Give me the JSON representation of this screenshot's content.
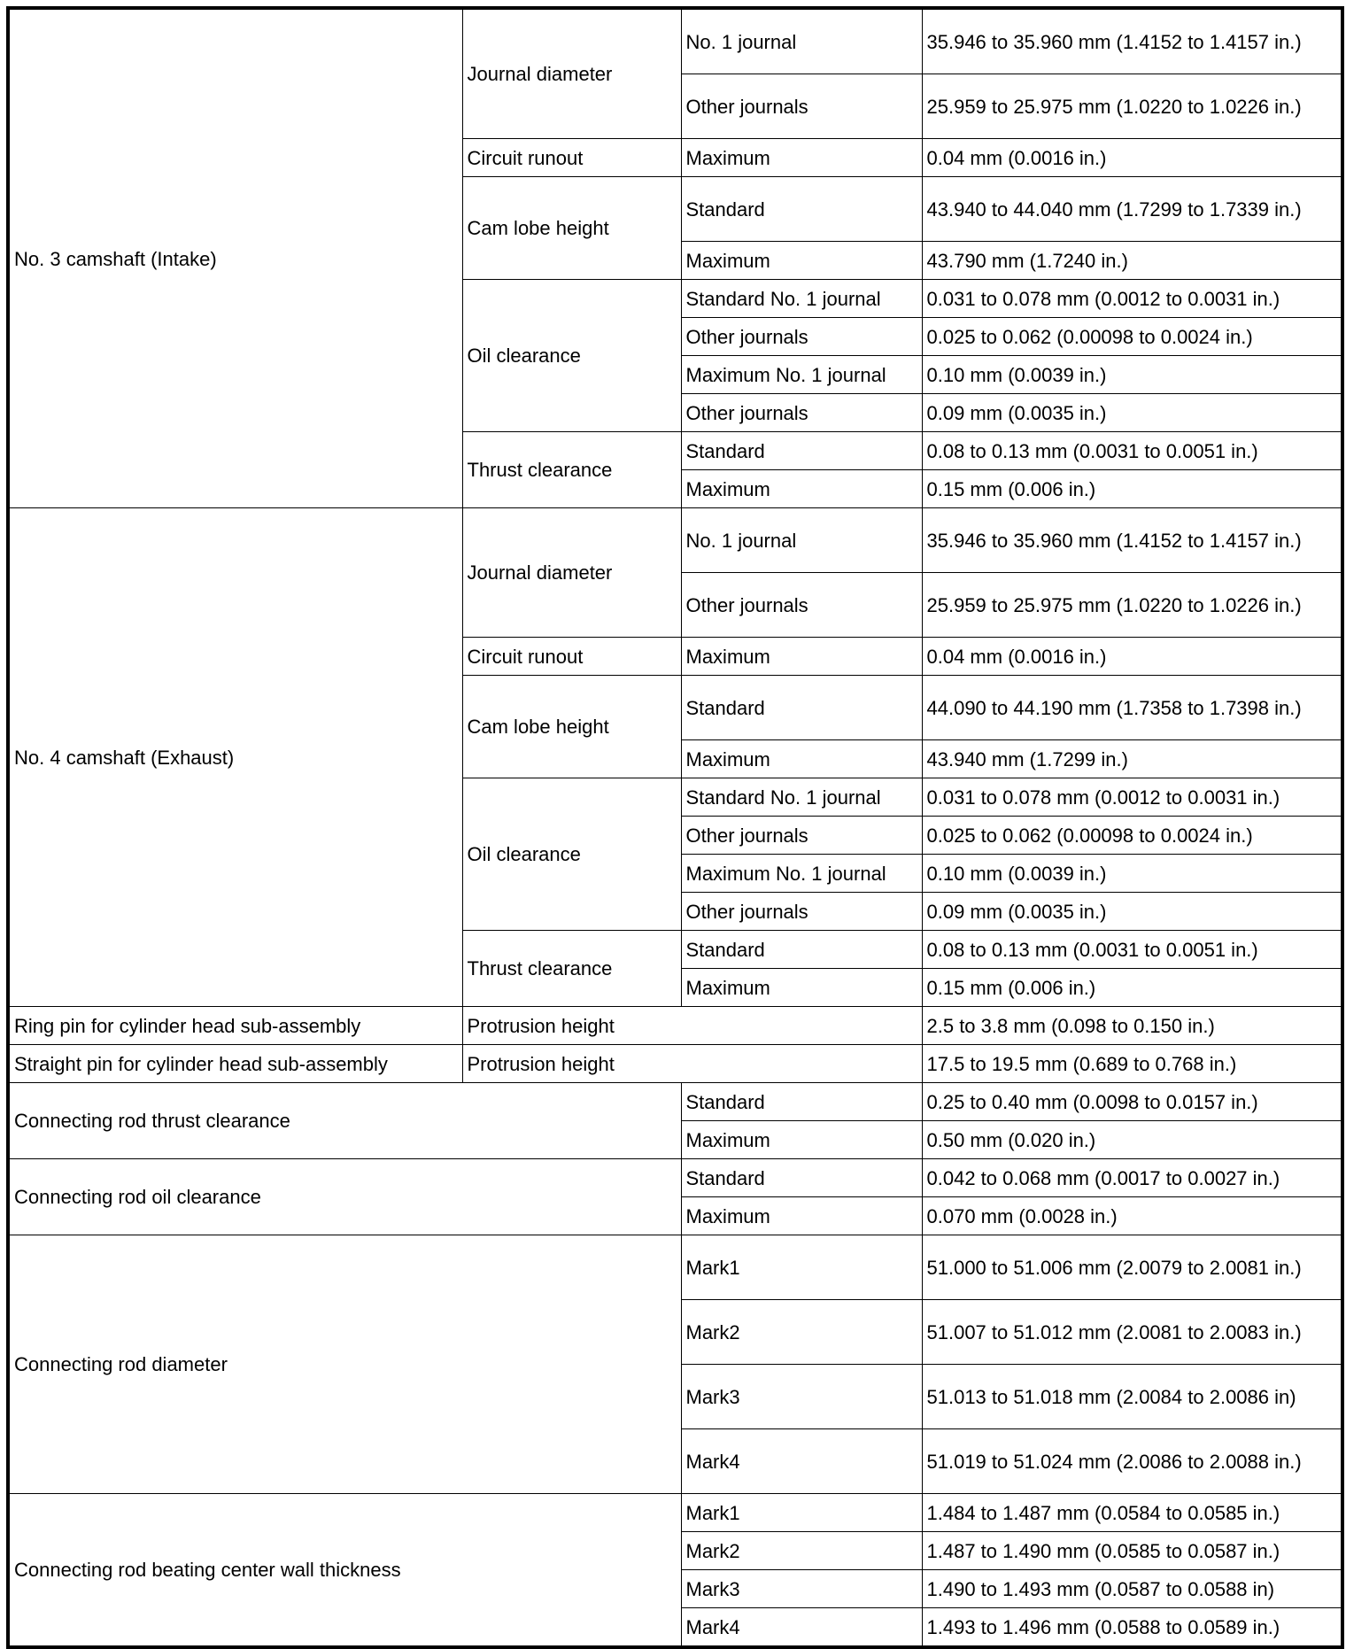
{
  "sections": [
    {
      "item": "No. 3 camshaft (Intake)",
      "subs": [
        {
          "name": "Journal diameter",
          "specs": [
            {
              "cond": "No. 1 journal",
              "value": "35.946 to 35.960 mm (1.4152 to 1.4157 in.)"
            },
            {
              "cond": "Other journals",
              "value": "25.959 to 25.975 mm (1.0220 to 1.0226 in.)"
            }
          ]
        },
        {
          "name": "Circuit runout",
          "specs": [
            {
              "cond": "Maximum",
              "value": "0.04 mm (0.0016 in.)"
            }
          ]
        },
        {
          "name": "Cam lobe height",
          "specs": [
            {
              "cond": "Standard",
              "value": "43.940 to 44.040 mm (1.7299 to 1.7339 in.)"
            },
            {
              "cond": "Maximum",
              "value": "43.790 mm (1.7240 in.)"
            }
          ]
        },
        {
          "name": "Oil clearance",
          "specs": [
            {
              "cond": "Standard No. 1 journal",
              "value": "0.031 to 0.078 mm (0.0012 to 0.0031 in.)"
            },
            {
              "cond": "Other journals",
              "value": "0.025 to 0.062 (0.00098 to 0.0024 in.)"
            },
            {
              "cond": "Maximum No. 1 journal",
              "value": "0.10 mm (0.0039 in.)"
            },
            {
              "cond": "Other journals",
              "value": "0.09 mm (0.0035 in.)"
            }
          ]
        },
        {
          "name": "Thrust clearance",
          "specs": [
            {
              "cond": "Standard",
              "value": "0.08 to 0.13 mm (0.0031 to 0.0051 in.)"
            },
            {
              "cond": "Maximum",
              "value": "0.15 mm (0.006 in.)"
            }
          ]
        }
      ]
    },
    {
      "item": "No. 4 camshaft (Exhaust)",
      "subs": [
        {
          "name": "Journal diameter",
          "specs": [
            {
              "cond": "No. 1 journal",
              "value": "35.946 to 35.960 mm (1.4152 to 1.4157 in.)"
            },
            {
              "cond": "Other journals",
              "value": "25.959 to 25.975 mm (1.0220 to 1.0226 in.)"
            }
          ]
        },
        {
          "name": "Circuit runout",
          "specs": [
            {
              "cond": "Maximum",
              "value": "0.04 mm (0.0016 in.)"
            }
          ]
        },
        {
          "name": "Cam lobe height",
          "specs": [
            {
              "cond": "Standard",
              "value": "44.090 to 44.190 mm (1.7358 to 1.7398 in.)"
            },
            {
              "cond": "Maximum",
              "value": "43.940 mm (1.7299 in.)"
            }
          ]
        },
        {
          "name": "Oil clearance",
          "specs": [
            {
              "cond": "Standard No. 1 journal",
              "value": "0.031 to 0.078 mm (0.0012 to 0.0031 in.)"
            },
            {
              "cond": "Other journals",
              "value": "0.025 to 0.062 (0.00098 to 0.0024 in.)"
            },
            {
              "cond": "Maximum No. 1 journal",
              "value": "0.10 mm (0.0039 in.)"
            },
            {
              "cond": "Other journals",
              "value": "0.09 mm (0.0035 in.)"
            }
          ]
        },
        {
          "name": "Thrust clearance",
          "specs": [
            {
              "cond": "Standard",
              "value": "0.08 to 0.13 mm (0.0031 to 0.0051 in.)"
            },
            {
              "cond": "Maximum",
              "value": "0.15 mm (0.006 in.)"
            }
          ]
        }
      ]
    },
    {
      "item": "Ring pin for cylinder head sub-assembly",
      "subs": [
        {
          "name": "Protrusion height",
          "specs": [
            {
              "cond": null,
              "value": "2.5 to 3.8 mm (0.098 to 0.150 in.)"
            }
          ]
        }
      ]
    },
    {
      "item": "Straight pin for cylinder head sub-assembly",
      "subs": [
        {
          "name": "Protrusion height",
          "specs": [
            {
              "cond": null,
              "value": "17.5 to 19.5 mm (0.689 to 0.768 in.)"
            }
          ]
        }
      ]
    },
    {
      "item": "Connecting rod thrust clearance",
      "subs": [
        {
          "name": null,
          "specs": [
            {
              "cond": "Standard",
              "value": "0.25 to 0.40 mm (0.0098 to 0.0157 in.)"
            },
            {
              "cond": "Maximum",
              "value": "0.50 mm (0.020 in.)"
            }
          ]
        }
      ]
    },
    {
      "item": "Connecting rod oil clearance",
      "subs": [
        {
          "name": null,
          "specs": [
            {
              "cond": "Standard",
              "value": "0.042 to 0.068 mm (0.0017 to 0.0027 in.)"
            },
            {
              "cond": "Maximum",
              "value": "0.070 mm (0.0028 in.)"
            }
          ]
        }
      ]
    },
    {
      "item": "Connecting rod diameter",
      "subs": [
        {
          "name": null,
          "specs": [
            {
              "cond": "Mark1",
              "value": "51.000 to 51.006 mm (2.0079 to 2.0081 in.)"
            },
            {
              "cond": "Mark2",
              "value": "51.007 to 51.012 mm (2.0081 to 2.0083 in.)"
            },
            {
              "cond": "Mark3",
              "value": "51.013 to 51.018 mm (2.0084 to 2.0086 in)"
            },
            {
              "cond": "Mark4",
              "value": "51.019 to 51.024 mm (2.0086 to 2.0088 in.)"
            }
          ]
        }
      ]
    },
    {
      "item": "Connecting rod beating center wall thickness",
      "subs": [
        {
          "name": null,
          "specs": [
            {
              "cond": "Mark1",
              "value": "1.484 to 1.487 mm (0.0584 to 0.0585 in.)"
            },
            {
              "cond": "Mark2",
              "value": "1.487 to 1.490 mm (0.0585 to 0.0587 in.)"
            },
            {
              "cond": "Mark3",
              "value": "1.490 to 1.493 mm (0.0587 to 0.0588 in)"
            },
            {
              "cond": "Mark4",
              "value": "1.493 to 1.496 mm (0.0588 to 0.0589 in.)"
            }
          ]
        }
      ]
    }
  ]
}
